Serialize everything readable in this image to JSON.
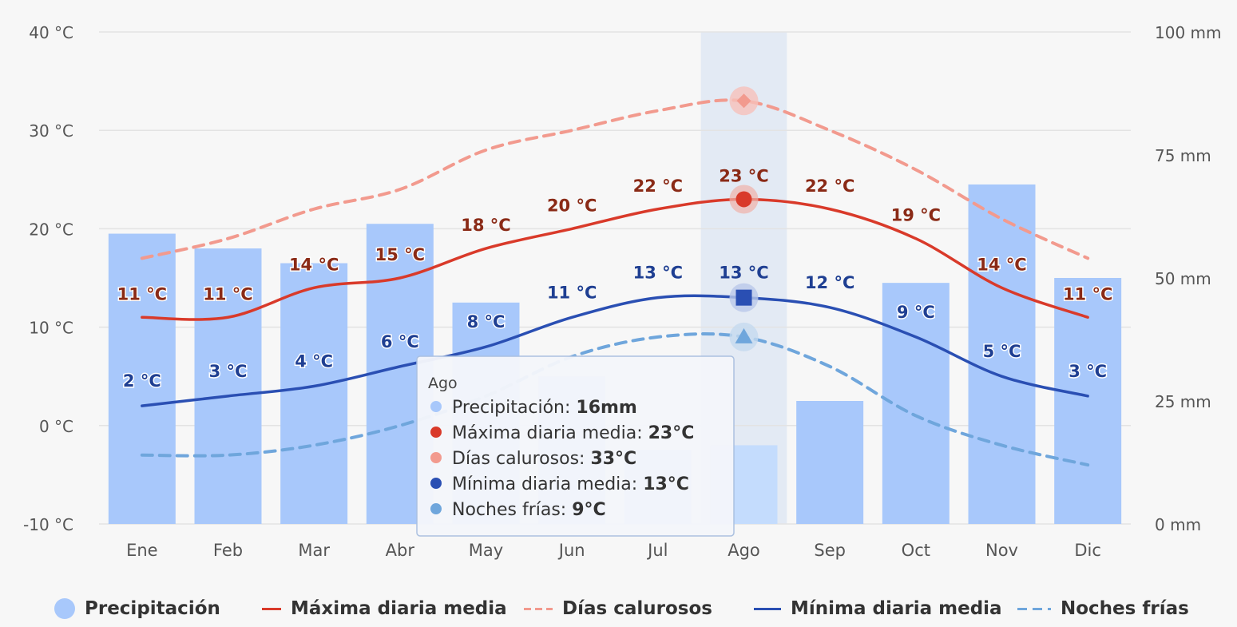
{
  "chart_data": {
    "type": "bar+line",
    "categories": [
      "Ene",
      "Feb",
      "Mar",
      "Abr",
      "May",
      "Jun",
      "Jul",
      "Ago",
      "Sep",
      "Oct",
      "Nov",
      "Dic"
    ],
    "y_left": {
      "ticks": [
        "40 °C",
        "30 °C",
        "20 °C",
        "10 °C",
        "0 °C",
        "-10 °C"
      ],
      "range": [
        -10,
        40
      ]
    },
    "y_right": {
      "ticks": [
        "100 mm",
        "75 mm",
        "50 mm",
        "25 mm",
        "0 mm"
      ],
      "range": [
        0,
        100
      ]
    },
    "series": [
      {
        "key": "precip",
        "name": "Precipitación",
        "type": "bar",
        "axis": "right",
        "color": "#a8c8fb",
        "values": [
          59,
          56,
          53,
          61,
          45,
          30,
          15,
          16,
          25,
          49,
          69,
          50
        ]
      },
      {
        "key": "max",
        "name": "Máxima diaria media",
        "type": "line",
        "axis": "left",
        "color": "#d93a2a",
        "values": [
          11,
          11,
          14,
          15,
          18,
          20,
          22,
          23,
          22,
          19,
          14,
          11
        ],
        "labels": [
          "11 °C",
          "11 °C",
          "14 °C",
          "15 °C",
          "18 °C",
          "20 °C",
          "22 °C",
          "23 °C",
          "22 °C",
          "19 °C",
          "14 °C",
          "11 °C"
        ]
      },
      {
        "key": "hot",
        "name": "Días calurosos",
        "type": "line-dashed",
        "axis": "left",
        "color": "#f29a8e",
        "values": [
          17,
          19,
          22,
          24,
          28,
          30,
          32,
          33,
          30,
          26,
          21,
          17
        ]
      },
      {
        "key": "min",
        "name": "Mínima diaria media",
        "type": "line",
        "axis": "left",
        "color": "#2a4fb3",
        "values": [
          2,
          3,
          4,
          6,
          8,
          11,
          13,
          13,
          12,
          9,
          5,
          3
        ],
        "labels": [
          "2 °C",
          "3 °C",
          "4 °C",
          "6 °C",
          "8 °C",
          "11 °C",
          "13 °C",
          "13 °C",
          "12 °C",
          "9 °C",
          "5 °C",
          "3 °C"
        ]
      },
      {
        "key": "cold",
        "name": "Noches frías",
        "type": "line-dashed",
        "axis": "left",
        "color": "#6fa6dc",
        "values": [
          -3,
          -3,
          -2,
          0,
          3,
          7,
          9,
          9,
          6,
          1,
          -2,
          -4
        ]
      }
    ],
    "highlight_index": 7,
    "tooltip": {
      "title": "Ago",
      "rows": [
        {
          "label": "Precipitación: ",
          "value": "16mm",
          "color": "#a8c8fb"
        },
        {
          "label": "Máxima diaria media: ",
          "value": "23°C",
          "color": "#d93a2a"
        },
        {
          "label": "Días calurosos: ",
          "value": "33°C",
          "color": "#f29a8e"
        },
        {
          "label": "Mínima diaria media: ",
          "value": "13°C",
          "color": "#2a4fb3"
        },
        {
          "label": "Noches frías: ",
          "value": "9°C",
          "color": "#6fa6dc"
        }
      ]
    },
    "legend_placement": "bottom",
    "grid": true
  }
}
